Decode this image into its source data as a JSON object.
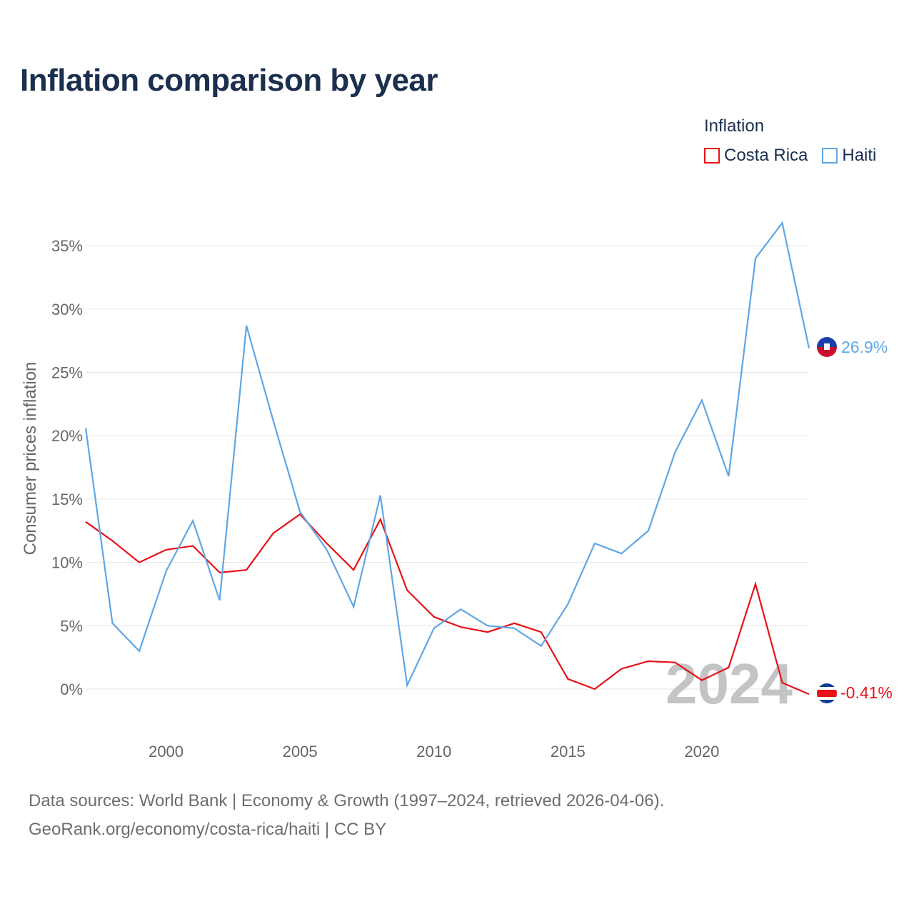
{
  "header": {
    "title": "Inflation comparison by year"
  },
  "legend": {
    "title": "Inflation",
    "items": [
      {
        "label": "Costa Rica",
        "color": "#e8121a"
      },
      {
        "label": "Haiti",
        "color": "#5fa6e4"
      }
    ]
  },
  "footer": {
    "line1": "Data sources: World Bank | Economy & Growth (1997–2024, retrieved 2026-04-06).",
    "line2": "GeoRank.org/economy/costa-rica/haiti | CC BY"
  },
  "chart_data": {
    "type": "line",
    "title": "Inflation comparison by year",
    "xlabel": "",
    "ylabel": "Consumer prices inflation",
    "year_watermark": "2024",
    "x": [
      1997,
      1998,
      1999,
      2000,
      2001,
      2002,
      2003,
      2004,
      2005,
      2006,
      2007,
      2008,
      2009,
      2010,
      2011,
      2012,
      2013,
      2014,
      2015,
      2016,
      2017,
      2018,
      2019,
      2020,
      2021,
      2022,
      2023,
      2024
    ],
    "xlim": [
      1997,
      2024
    ],
    "ylim": [
      -2,
      37
    ],
    "x_ticks": [
      2000,
      2005,
      2010,
      2015,
      2020
    ],
    "y_ticks": [
      0,
      5,
      10,
      15,
      20,
      25,
      30,
      35
    ],
    "y_tick_labels": [
      "0%",
      "5%",
      "10%",
      "15%",
      "20%",
      "25%",
      "30%",
      "35%"
    ],
    "grid": true,
    "series": [
      {
        "name": "Costa Rica",
        "color": "#e8121a",
        "end_label": "-0.41%",
        "values": [
          13.2,
          11.7,
          10.0,
          11.0,
          11.3,
          9.2,
          9.4,
          12.3,
          13.8,
          11.5,
          9.4,
          13.4,
          7.8,
          5.7,
          4.9,
          4.5,
          5.2,
          4.5,
          0.8,
          0.0,
          1.6,
          2.2,
          2.1,
          0.7,
          1.7,
          8.3,
          0.5,
          -0.41
        ]
      },
      {
        "name": "Haiti",
        "color": "#5fa6e4",
        "end_label": "26.9%",
        "values": [
          20.6,
          5.2,
          3.0,
          9.3,
          13.3,
          7.0,
          28.7,
          21.2,
          14.0,
          11.0,
          6.5,
          15.3,
          0.3,
          4.8,
          6.3,
          5.0,
          4.8,
          3.4,
          6.7,
          11.5,
          10.7,
          12.5,
          18.7,
          22.8,
          16.8,
          34.0,
          36.8,
          26.9
        ]
      }
    ]
  }
}
